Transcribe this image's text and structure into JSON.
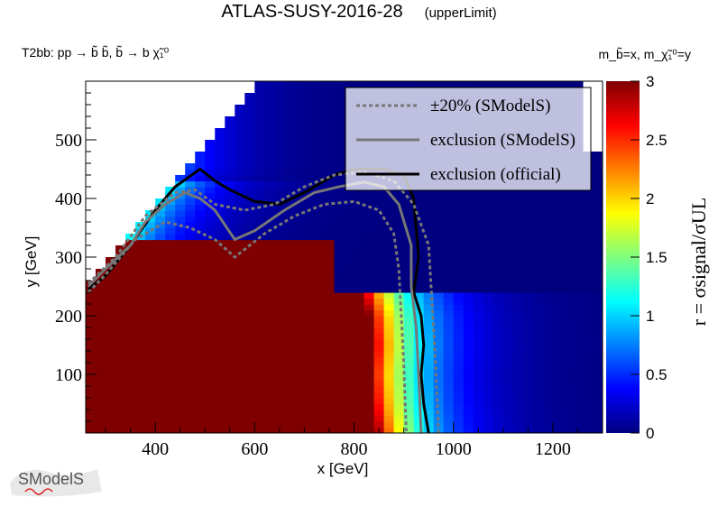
{
  "header": {
    "title": "ATLAS-SUSY-2016-28",
    "subtitle": "(upperLimit)",
    "process": "T2bb: pp → b̃ b̃, b̃ → b χ̃₁⁰",
    "mass_definition": "m_b̃=x, m_χ̃₁⁰=y"
  },
  "logo": {
    "text": "SModelS"
  },
  "chart_data": {
    "type": "heatmap",
    "title": "ATLAS-SUSY-2016-28",
    "xlabel": "x [GeV]",
    "ylabel": "y [GeV]",
    "zlabel": "r = σsignal/σUL",
    "xlim": [
      260,
      1300
    ],
    "ylim": [
      0,
      600
    ],
    "zlim": [
      0,
      3
    ],
    "x_ticks": [
      400,
      600,
      800,
      1000,
      1200
    ],
    "y_ticks": [
      100,
      200,
      300,
      400,
      500
    ],
    "z_ticks": [
      0,
      0.5,
      1,
      1.5,
      2,
      2.5,
      3
    ],
    "grid": false,
    "legend_position": "top-right",
    "legend": [
      {
        "label": "±20% (SModelS)",
        "style": "dotted",
        "color": "#777777"
      },
      {
        "label": "exclusion (SModelS)",
        "style": "solid",
        "color": "#777777"
      },
      {
        "label": "exclusion (official)",
        "style": "solid",
        "color": "#000000"
      }
    ],
    "colormap": [
      "#00007f",
      "#0000ff",
      "#007fff",
      "#00ffff",
      "#7fff7f",
      "#ffff00",
      "#ff7f00",
      "#ff0000",
      "#7f0000"
    ],
    "series": [
      {
        "name": "exclusion (official)",
        "points": [
          [
            265,
            245
          ],
          [
            300,
            268
          ],
          [
            350,
            320
          ],
          [
            400,
            380
          ],
          [
            440,
            420
          ],
          [
            490,
            450
          ],
          [
            520,
            430
          ],
          [
            550,
            415
          ],
          [
            600,
            395
          ],
          [
            650,
            390
          ],
          [
            700,
            410
          ],
          [
            760,
            440
          ],
          [
            800,
            450
          ],
          [
            860,
            450
          ],
          [
            900,
            440
          ],
          [
            920,
            400
          ],
          [
            930,
            300
          ],
          [
            920,
            240
          ],
          [
            935,
            200
          ],
          [
            940,
            150
          ],
          [
            935,
            100
          ],
          [
            940,
            50
          ],
          [
            950,
            0
          ]
        ]
      },
      {
        "name": "exclusion (SModelS)",
        "points": [
          [
            265,
            250
          ],
          [
            300,
            280
          ],
          [
            350,
            320
          ],
          [
            380,
            360
          ],
          [
            420,
            390
          ],
          [
            460,
            410
          ],
          [
            490,
            400
          ],
          [
            520,
            380
          ],
          [
            560,
            330
          ],
          [
            600,
            345
          ],
          [
            660,
            380
          ],
          [
            720,
            410
          ],
          [
            770,
            420
          ],
          [
            820,
            428
          ],
          [
            860,
            420
          ],
          [
            890,
            390
          ],
          [
            915,
            320
          ],
          [
            915,
            250
          ],
          [
            925,
            180
          ],
          [
            930,
            100
          ],
          [
            935,
            0
          ]
        ]
      },
      {
        "name": "±20% (SModelS) upper",
        "points": [
          [
            265,
            255
          ],
          [
            320,
            300
          ],
          [
            380,
            370
          ],
          [
            440,
            410
          ],
          [
            480,
            415
          ],
          [
            520,
            390
          ],
          [
            580,
            380
          ],
          [
            640,
            390
          ],
          [
            700,
            420
          ],
          [
            760,
            440
          ],
          [
            820,
            445
          ],
          [
            880,
            430
          ],
          [
            920,
            390
          ],
          [
            950,
            320
          ],
          [
            955,
            250
          ],
          [
            960,
            180
          ],
          [
            965,
            100
          ],
          [
            970,
            0
          ]
        ]
      },
      {
        "name": "±20% (SModelS) lower",
        "points": [
          [
            265,
            240
          ],
          [
            300,
            270
          ],
          [
            360,
            330
          ],
          [
            420,
            360
          ],
          [
            470,
            350
          ],
          [
            520,
            330
          ],
          [
            560,
            300
          ],
          [
            620,
            340
          ],
          [
            680,
            370
          ],
          [
            740,
            390
          ],
          [
            800,
            395
          ],
          [
            850,
            380
          ],
          [
            880,
            340
          ],
          [
            890,
            280
          ],
          [
            895,
            200
          ],
          [
            900,
            120
          ],
          [
            905,
            0
          ]
        ]
      }
    ]
  }
}
